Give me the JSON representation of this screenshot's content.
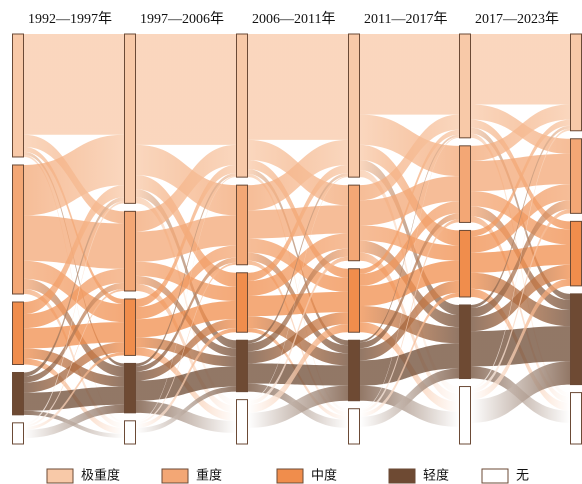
{
  "chart_data": {
    "type": "sankey",
    "periods": [
      "1992—1997年",
      "1997—2006年",
      "2006—2011年",
      "2011—2017年",
      "2017—2023年"
    ],
    "categories": [
      "极重度",
      "重度",
      "中度",
      "轻度",
      "无"
    ],
    "colors": [
      "#f8c9a8",
      "#f3a775",
      "#f08d4c",
      "#6e4a33",
      "#ffffff"
    ],
    "nodes": [
      [
        122,
        128,
        62,
        42,
        21
      ],
      [
        168,
        79,
        56,
        49,
        23
      ],
      [
        142,
        79,
        59,
        51,
        44
      ],
      [
        142,
        75,
        63,
        60,
        35
      ],
      [
        103,
        76,
        66,
        73,
        57
      ],
      [
        96,
        74,
        64,
        90,
        51
      ]
    ],
    "flows": [
      [
        [
          100,
          12,
          5,
          3,
          2
        ],
        [
          50,
          45,
          18,
          10,
          5
        ],
        [
          12,
          14,
          20,
          10,
          6
        ],
        [
          4,
          6,
          10,
          18,
          4
        ],
        [
          2,
          2,
          3,
          8,
          6
        ]
      ],
      [
        [
          110,
          30,
          14,
          8,
          6
        ],
        [
          20,
          30,
          14,
          8,
          7
        ],
        [
          8,
          12,
          18,
          10,
          8
        ],
        [
          3,
          5,
          9,
          20,
          12
        ],
        [
          1,
          2,
          4,
          5,
          11
        ]
      ],
      [
        [
          105,
          20,
          9,
          5,
          3
        ],
        [
          25,
          28,
          14,
          8,
          4
        ],
        [
          8,
          15,
          20,
          12,
          4
        ],
        [
          3,
          8,
          12,
          20,
          8
        ],
        [
          1,
          4,
          8,
          15,
          16
        ]
      ],
      [
        [
          80,
          30,
          15,
          10,
          7
        ],
        [
          15,
          25,
          15,
          12,
          8
        ],
        [
          5,
          12,
          20,
          16,
          10
        ],
        [
          2,
          6,
          12,
          25,
          15
        ],
        [
          1,
          3,
          4,
          10,
          17
        ]
      ],
      [
        [
          70,
          15,
          8,
          6,
          4
        ],
        [
          15,
          30,
          15,
          10,
          6
        ],
        [
          6,
          16,
          20,
          16,
          8
        ],
        [
          3,
          9,
          14,
          35,
          12
        ],
        [
          2,
          4,
          7,
          23,
          21
        ]
      ]
    ]
  }
}
